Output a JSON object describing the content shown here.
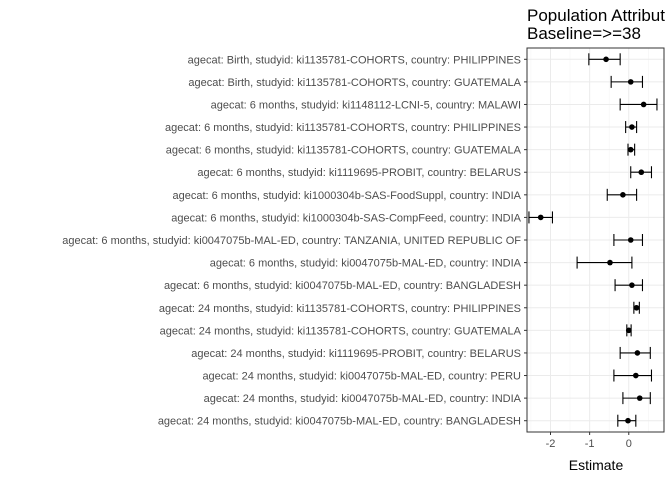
{
  "chart_data": {
    "type": "scatter",
    "title": [
      "Population Attribut",
      "Baseline=>=38"
    ],
    "xlabel": "Estimate",
    "ylabel": "",
    "xlim": [
      -2.6,
      0.9
    ],
    "xticks": [
      -2,
      -1,
      0
    ],
    "grid": true,
    "rows": [
      {
        "label": "agecat: Birth, studyid: ki1135781-COHORTS, country: PHILIPPINES",
        "estimate": -0.58,
        "lower": -1.02,
        "upper": -0.22
      },
      {
        "label": "agecat: Birth, studyid: ki1135781-COHORTS, country: GUATEMALA",
        "estimate": 0.05,
        "lower": -0.45,
        "upper": 0.35
      },
      {
        "label": "agecat: 6 months, studyid: ki1148112-LCNI-5, country: MALAWI",
        "estimate": 0.38,
        "lower": -0.22,
        "upper": 0.72
      },
      {
        "label": "agecat: 6 months, studyid: ki1135781-COHORTS, country: PHILIPPINES",
        "estimate": 0.08,
        "lower": -0.08,
        "upper": 0.2
      },
      {
        "label": "agecat: 6 months, studyid: ki1135781-COHORTS, country: GUATEMALA",
        "estimate": 0.05,
        "lower": -0.02,
        "upper": 0.15
      },
      {
        "label": "agecat: 6 months, studyid: ki1119695-PROBIT, country: BELARUS",
        "estimate": 0.32,
        "lower": 0.05,
        "upper": 0.58
      },
      {
        "label": "agecat: 6 months, studyid: ki1000304b-SAS-FoodSuppl, country: INDIA",
        "estimate": -0.15,
        "lower": -0.55,
        "upper": 0.2
      },
      {
        "label": "agecat: 6 months, studyid: ki1000304b-SAS-CompFeed, country: INDIA",
        "estimate": -2.25,
        "lower": -2.55,
        "upper": -1.95
      },
      {
        "label": "agecat: 6 months, studyid: ki0047075b-MAL-ED, country: TANZANIA, UNITED REPUBLIC OF",
        "estimate": 0.05,
        "lower": -0.38,
        "upper": 0.35
      },
      {
        "label": "agecat: 6 months, studyid: ki0047075b-MAL-ED, country: INDIA",
        "estimate": -0.48,
        "lower": -1.32,
        "upper": 0.08
      },
      {
        "label": "agecat: 6 months, studyid: ki0047075b-MAL-ED, country: BANGLADESH",
        "estimate": 0.08,
        "lower": -0.35,
        "upper": 0.35
      },
      {
        "label": "agecat: 24 months, studyid: ki1135781-COHORTS, country: PHILIPPINES",
        "estimate": 0.2,
        "lower": 0.13,
        "upper": 0.27
      },
      {
        "label": "agecat: 24 months, studyid: ki1135781-COHORTS, country: GUATEMALA",
        "estimate": 0.0,
        "lower": -0.05,
        "upper": 0.06
      },
      {
        "label": "agecat: 24 months, studyid: ki1119695-PROBIT, country: BELARUS",
        "estimate": 0.22,
        "lower": -0.22,
        "upper": 0.55
      },
      {
        "label": "agecat: 24 months, studyid: ki0047075b-MAL-ED, country: PERU",
        "estimate": 0.18,
        "lower": -0.38,
        "upper": 0.58
      },
      {
        "label": "agecat: 24 months, studyid: ki0047075b-MAL-ED, country: INDIA",
        "estimate": 0.28,
        "lower": -0.15,
        "upper": 0.55
      },
      {
        "label": "agecat: 24 months, studyid: ki0047075b-MAL-ED, country: BANGLADESH",
        "estimate": -0.02,
        "lower": -0.28,
        "upper": 0.18
      }
    ]
  }
}
